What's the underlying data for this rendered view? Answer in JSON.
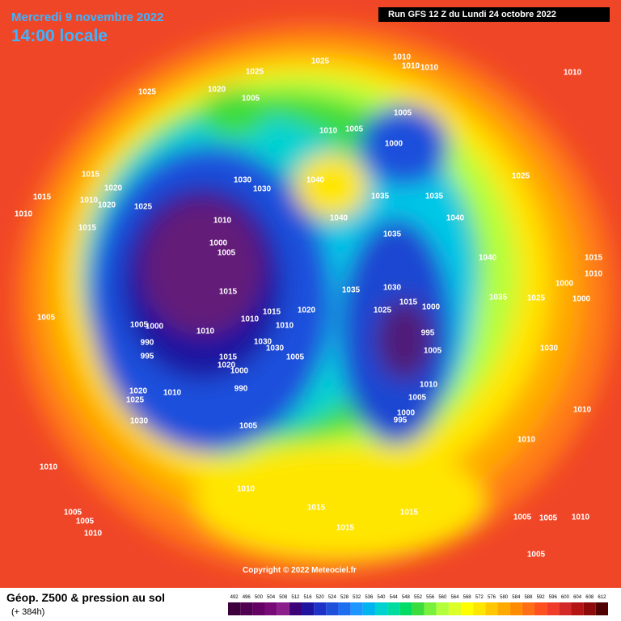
{
  "header": {
    "date": "Mercredi 9 novembre 2022",
    "time": "14:00 locale",
    "run": "Run GFS 12 Z du Lundi 24 octobre 2022"
  },
  "copyright": "Copyright © 2022 Meteociel.fr",
  "footer": {
    "title": "Géop. Z500 & pression au sol",
    "subtitle": "(+ 384h)"
  },
  "legend": {
    "values": [
      492,
      496,
      500,
      504,
      508,
      512,
      516,
      520,
      524,
      528,
      532,
      536,
      540,
      544,
      548,
      552,
      556,
      560,
      564,
      568,
      572,
      576,
      580,
      584,
      588,
      592,
      596,
      600,
      604,
      608,
      612
    ],
    "colors": [
      "#3c003c",
      "#500050",
      "#640064",
      "#780a78",
      "#8c1e8c",
      "#3c0078",
      "#1e14a0",
      "#1e32c8",
      "#1e50dc",
      "#1e6ef0",
      "#1e96ff",
      "#00b4f0",
      "#00d2d2",
      "#00dca0",
      "#00dc64",
      "#3cdc3c",
      "#78f03c",
      "#b4ff3c",
      "#dcff28",
      "#ffff00",
      "#ffe600",
      "#ffc800",
      "#ffaa00",
      "#ff8c00",
      "#ff6e14",
      "#ff501e",
      "#f03c28",
      "#d22828",
      "#b41414",
      "#8c0a0a",
      "#500000"
    ]
  },
  "isobar_labels": [
    "1025",
    "1010",
    "1010",
    "1010",
    "1010",
    "1025",
    "1025",
    "1020",
    "1005",
    "1005",
    "1010",
    "1005",
    "1000",
    "1015",
    "1015",
    "1020",
    "1010",
    "1015",
    "1020",
    "1025",
    "1030",
    "1030",
    "1040",
    "1035",
    "1035",
    "1025",
    "1010",
    "1010",
    "1040",
    "1040",
    "1000",
    "1005",
    "1035",
    "1040",
    "1015",
    "1010",
    "1000",
    "1015",
    "1035",
    "1030",
    "1035",
    "1025",
    "1000",
    "1015",
    "1000",
    "1025",
    "1015",
    "1020",
    "1005",
    "1000",
    "1005",
    "1010",
    "1010",
    "1010",
    "995",
    "990",
    "1030",
    "1030",
    "1005",
    "995",
    "1005",
    "1015",
    "1020",
    "1000",
    "1030",
    "990",
    "1010",
    "1020",
    "1025",
    "1010",
    "1005",
    "1000",
    "995",
    "1030",
    "1005",
    "1010",
    "1010",
    "1010",
    "1010",
    "1015",
    "1015",
    "1005",
    "1005",
    "1010",
    "1015",
    "1005",
    "1005",
    "1010",
    "1005"
  ]
}
